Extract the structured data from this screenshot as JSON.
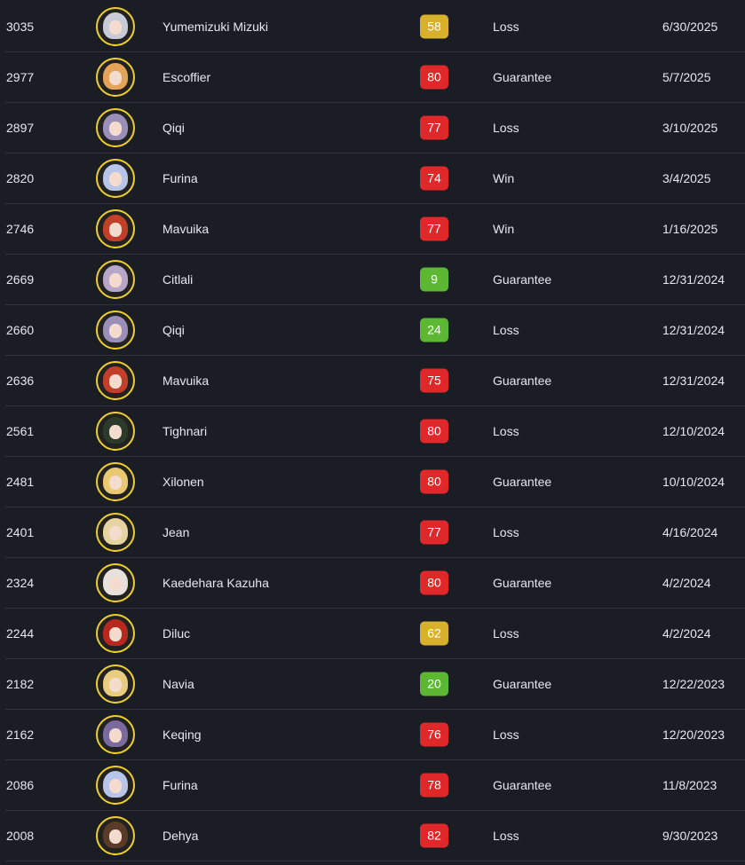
{
  "colors": {
    "low": "#5cb833",
    "mid": "#d9b02c",
    "high": "#e0282a",
    "avatar_border": "#f0cf2c"
  },
  "rows": [
    {
      "id": "3035",
      "name": "Yumemizuki Mizuki",
      "pity": "58",
      "level": "mid",
      "result": "Loss",
      "date": "6/30/2025",
      "hair": "#c9ccd8"
    },
    {
      "id": "2977",
      "name": "Escoffier",
      "pity": "80",
      "level": "high",
      "result": "Guarantee",
      "date": "5/7/2025",
      "hair": "#e3a45a"
    },
    {
      "id": "2897",
      "name": "Qiqi",
      "pity": "77",
      "level": "high",
      "result": "Loss",
      "date": "3/10/2025",
      "hair": "#9a8fb8"
    },
    {
      "id": "2820",
      "name": "Furina",
      "pity": "74",
      "level": "high",
      "result": "Win",
      "date": "3/4/2025",
      "hair": "#b8c4e8"
    },
    {
      "id": "2746",
      "name": "Mavuika",
      "pity": "77",
      "level": "high",
      "result": "Win",
      "date": "1/16/2025",
      "hair": "#c2402a"
    },
    {
      "id": "2669",
      "name": "Citlali",
      "pity": "9",
      "level": "low",
      "result": "Guarantee",
      "date": "12/31/2024",
      "hair": "#b7a6c8"
    },
    {
      "id": "2660",
      "name": "Qiqi",
      "pity": "24",
      "level": "low",
      "result": "Loss",
      "date": "12/31/2024",
      "hair": "#9a8fb8"
    },
    {
      "id": "2636",
      "name": "Mavuika",
      "pity": "75",
      "level": "high",
      "result": "Guarantee",
      "date": "12/31/2024",
      "hair": "#c2402a"
    },
    {
      "id": "2561",
      "name": "Tighnari",
      "pity": "80",
      "level": "high",
      "result": "Loss",
      "date": "12/10/2024",
      "hair": "#2b3a2a"
    },
    {
      "id": "2481",
      "name": "Xilonen",
      "pity": "80",
      "level": "high",
      "result": "Guarantee",
      "date": "10/10/2024",
      "hair": "#e8c870"
    },
    {
      "id": "2401",
      "name": "Jean",
      "pity": "77",
      "level": "high",
      "result": "Loss",
      "date": "4/16/2024",
      "hair": "#e6d4a0"
    },
    {
      "id": "2324",
      "name": "Kaedehara Kazuha",
      "pity": "80",
      "level": "high",
      "result": "Guarantee",
      "date": "4/2/2024",
      "hair": "#e8e0dc"
    },
    {
      "id": "2244",
      "name": "Diluc",
      "pity": "62",
      "level": "mid",
      "result": "Loss",
      "date": "4/2/2024",
      "hair": "#b8281e"
    },
    {
      "id": "2182",
      "name": "Navia",
      "pity": "20",
      "level": "low",
      "result": "Guarantee",
      "date": "12/22/2023",
      "hair": "#e8cc80"
    },
    {
      "id": "2162",
      "name": "Keqing",
      "pity": "76",
      "level": "high",
      "result": "Loss",
      "date": "12/20/2023",
      "hair": "#7b6a9e"
    },
    {
      "id": "2086",
      "name": "Furina",
      "pity": "78",
      "level": "high",
      "result": "Guarantee",
      "date": "11/8/2023",
      "hair": "#b8c4e8"
    },
    {
      "id": "2008",
      "name": "Dehya",
      "pity": "82",
      "level": "high",
      "result": "Loss",
      "date": "9/30/2023",
      "hair": "#5a3a28"
    }
  ]
}
